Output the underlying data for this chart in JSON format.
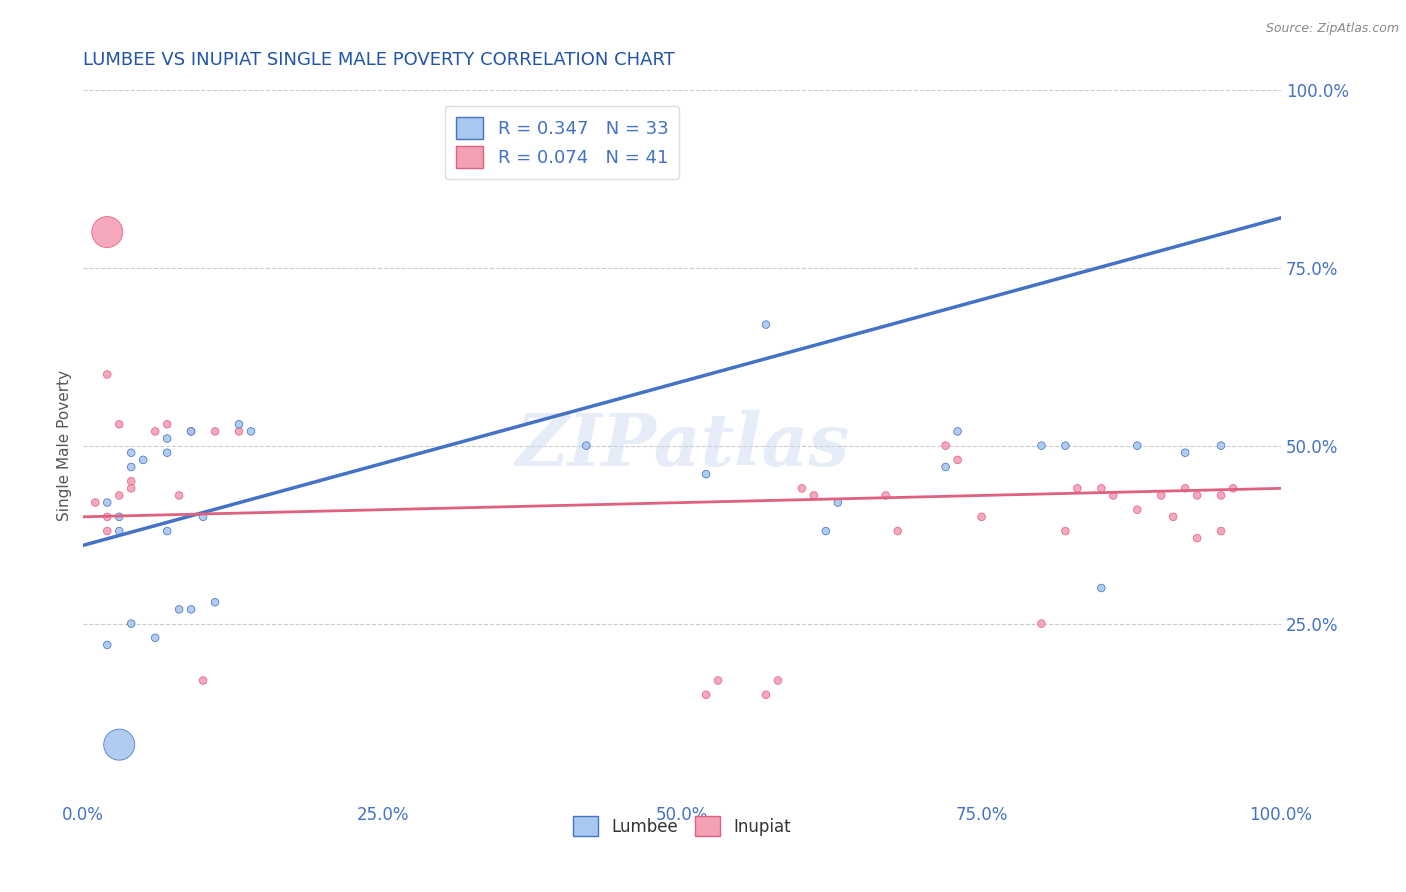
{
  "title": "LUMBEE VS INUPIAT SINGLE MALE POVERTY CORRELATION CHART",
  "source": "Source: ZipAtlas.com",
  "ylabel": "Single Male Poverty",
  "xlim": [
    0,
    1.0
  ],
  "ylim": [
    0,
    1.0
  ],
  "xtick_labels": [
    "0.0%",
    "25.0%",
    "50.0%",
    "75.0%",
    "100.0%"
  ],
  "xtick_vals": [
    0.0,
    0.25,
    0.5,
    0.75,
    1.0
  ],
  "ytick_labels_right": [
    "100.0%",
    "75.0%",
    "50.0%",
    "25.0%"
  ],
  "ytick_vals_right": [
    1.0,
    0.75,
    0.5,
    0.25
  ],
  "lumbee_R": 0.347,
  "lumbee_N": 33,
  "inupiat_R": 0.074,
  "inupiat_N": 41,
  "lumbee_color": "#A8C8F0",
  "inupiat_color": "#F4A0B5",
  "lumbee_line_color": "#4472C4",
  "inupiat_line_color": "#E06080",
  "watermark_text": "ZIPatlas",
  "title_color": "#2255AA",
  "axis_label_color": "#555555",
  "tick_color": "#4472C4",
  "grid_color": "#CCCCCC",
  "legend_text_color": "#4472C4",
  "background_color": "#FFFFFF",
  "lumbee_x": [
    0.02,
    0.03,
    0.03,
    0.04,
    0.04,
    0.04,
    0.05,
    0.06,
    0.07,
    0.07,
    0.07,
    0.08,
    0.09,
    0.09,
    0.1,
    0.11,
    0.13,
    0.14,
    0.02,
    0.03,
    0.42,
    0.52,
    0.57,
    0.62,
    0.63,
    0.72,
    0.73,
    0.8,
    0.82,
    0.85,
    0.88,
    0.92,
    0.95
  ],
  "lumbee_y": [
    0.42,
    0.4,
    0.38,
    0.49,
    0.47,
    0.25,
    0.48,
    0.23,
    0.51,
    0.49,
    0.38,
    0.27,
    0.52,
    0.27,
    0.4,
    0.28,
    0.53,
    0.52,
    0.22,
    0.08,
    0.5,
    0.46,
    0.67,
    0.38,
    0.42,
    0.47,
    0.52,
    0.5,
    0.5,
    0.3,
    0.5,
    0.49,
    0.5
  ],
  "lumbee_sizes": [
    30,
    30,
    30,
    30,
    30,
    30,
    30,
    30,
    30,
    30,
    30,
    30,
    30,
    30,
    30,
    30,
    30,
    30,
    30,
    500,
    30,
    30,
    30,
    30,
    30,
    30,
    30,
    30,
    30,
    30,
    30,
    30,
    30
  ],
  "inupiat_x": [
    0.01,
    0.02,
    0.02,
    0.02,
    0.03,
    0.03,
    0.04,
    0.04,
    0.06,
    0.07,
    0.08,
    0.09,
    0.1,
    0.11,
    0.13,
    0.02,
    0.57,
    0.58,
    0.6,
    0.61,
    0.67,
    0.68,
    0.72,
    0.73,
    0.75,
    0.8,
    0.82,
    0.83,
    0.85,
    0.86,
    0.88,
    0.9,
    0.91,
    0.92,
    0.93,
    0.93,
    0.95,
    0.95,
    0.96,
    0.52,
    0.53
  ],
  "inupiat_y": [
    0.42,
    0.38,
    0.4,
    0.6,
    0.43,
    0.53,
    0.45,
    0.44,
    0.52,
    0.53,
    0.43,
    0.52,
    0.17,
    0.52,
    0.52,
    0.8,
    0.15,
    0.17,
    0.44,
    0.43,
    0.43,
    0.38,
    0.5,
    0.48,
    0.4,
    0.25,
    0.38,
    0.44,
    0.44,
    0.43,
    0.41,
    0.43,
    0.4,
    0.44,
    0.43,
    0.37,
    0.43,
    0.38,
    0.44,
    0.15,
    0.17
  ],
  "inupiat_sizes": [
    30,
    30,
    30,
    30,
    30,
    30,
    30,
    30,
    30,
    30,
    30,
    30,
    30,
    30,
    30,
    500,
    30,
    30,
    30,
    30,
    30,
    30,
    30,
    30,
    30,
    30,
    30,
    30,
    30,
    30,
    30,
    30,
    30,
    30,
    30,
    30,
    30,
    30,
    30,
    30,
    30
  ],
  "lumbee_line_x": [
    0.0,
    1.0
  ],
  "lumbee_line_y": [
    0.36,
    0.82
  ],
  "inupiat_line_x": [
    0.0,
    1.0
  ],
  "inupiat_line_y": [
    0.4,
    0.44
  ]
}
